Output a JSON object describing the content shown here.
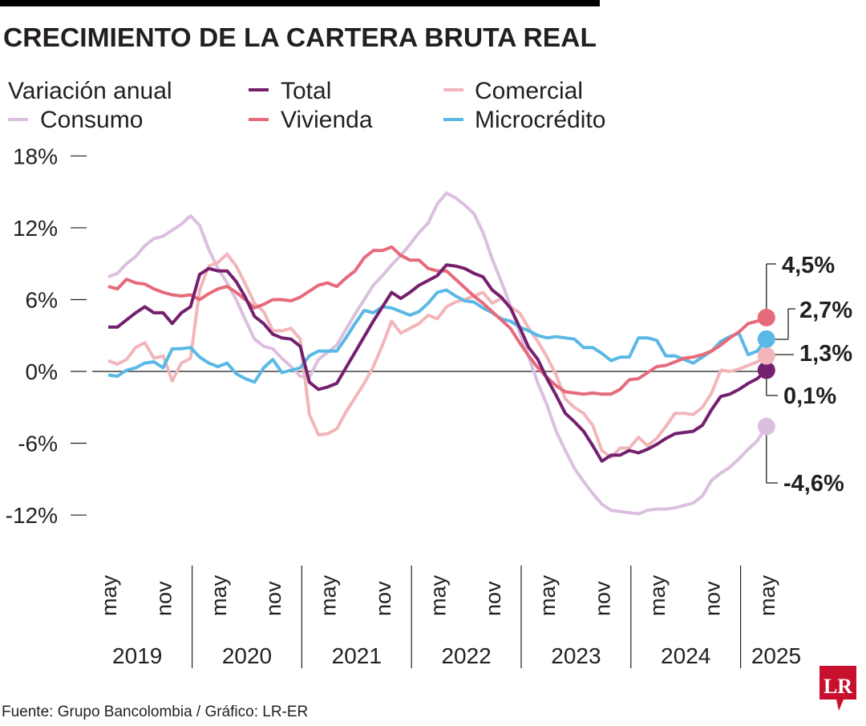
{
  "title": "CRECIMIENTO DE LA CARTERA BRUTA REAL",
  "legend": {
    "caption": "Variación anual",
    "items": [
      {
        "key": "total",
        "label": "Total",
        "color": "#74206f"
      },
      {
        "key": "comercial",
        "label": "Comercial",
        "color": "#f2b6ba"
      },
      {
        "key": "consumo",
        "label": "Consumo",
        "color": "#dbbfdf"
      },
      {
        "key": "vivienda",
        "label": "Vivienda",
        "color": "#e76a7b"
      },
      {
        "key": "microcredito",
        "label": "Microcrédito",
        "color": "#5ab8e6"
      }
    ]
  },
  "source": "Fuente: Grupo Bancolombia / Gráfico: LR-ER",
  "logo_text": "LR",
  "chart_data": {
    "type": "line",
    "title": "CRECIMIENTO DE LA CARTERA BRUTA REAL",
    "ylabel": "Variación anual",
    "ylim": [
      -12,
      18
    ],
    "yticks": [
      "18%",
      "12%",
      "6%",
      "0%",
      "-6%",
      "-12%"
    ],
    "ytick_values": [
      18,
      12,
      6,
      0,
      -6,
      -12
    ],
    "x_start": "may 2019",
    "x_end": "may 2025",
    "x_frequency": "monthly",
    "xtick_labels": [
      "may",
      "nov",
      "may",
      "nov",
      "may",
      "nov",
      "may",
      "nov",
      "may",
      "nov",
      "may",
      "nov",
      "may"
    ],
    "years": [
      "2019",
      "2020",
      "2021",
      "2022",
      "2023",
      "2024",
      "2025"
    ],
    "zero_line": true,
    "grid": false,
    "legend_position": "top",
    "series": [
      {
        "key": "consumo",
        "name": "Consumo",
        "color": "#dbbfdf",
        "end_label": "-4,6%",
        "values": [
          7.9,
          8.2,
          9.0,
          9.6,
          10.5,
          11.1,
          11.3,
          11.8,
          12.3,
          13.0,
          12.2,
          10.2,
          8.6,
          7.4,
          6.0,
          4.3,
          2.7,
          2.1,
          1.9,
          1.1,
          0.4,
          -0.4,
          -0.5,
          1.0,
          1.6,
          2.2,
          3.5,
          4.8,
          6.0,
          7.2,
          8.0,
          8.9,
          9.7,
          10.6,
          11.6,
          12.4,
          14.0,
          14.9,
          14.5,
          13.9,
          13.2,
          11.6,
          9.4,
          7.5,
          5.5,
          3.3,
          1.2,
          -1.0,
          -2.8,
          -5.0,
          -6.6,
          -8.1,
          -9.2,
          -10.2,
          -11.1,
          -11.6,
          -11.7,
          -11.8,
          -11.9,
          -11.6,
          -11.5,
          -11.5,
          -11.4,
          -11.2,
          -11.0,
          -10.4,
          -9.1,
          -8.5,
          -8.0,
          -7.3,
          -6.5,
          -5.8,
          -4.6
        ]
      },
      {
        "key": "comercial",
        "name": "Comercial",
        "color": "#f2b6ba",
        "end_label": "1,3%",
        "values": [
          0.9,
          0.6,
          1.0,
          2.0,
          2.4,
          1.1,
          1.3,
          -0.8,
          0.7,
          1.1,
          6.8,
          8.8,
          9.1,
          9.8,
          8.8,
          7.3,
          5.7,
          5.0,
          3.4,
          3.4,
          3.6,
          2.7,
          -3.6,
          -5.3,
          -5.2,
          -4.8,
          -3.4,
          -2.2,
          -1.0,
          0.4,
          2.2,
          4.2,
          3.2,
          3.6,
          4.0,
          4.7,
          4.4,
          5.4,
          5.8,
          6.0,
          6.3,
          6.6,
          5.7,
          6.1,
          5.4,
          4.9,
          3.6,
          2.5,
          1.2,
          -0.3,
          -2.3,
          -3.0,
          -3.5,
          -4.5,
          -6.6,
          -7.2,
          -6.4,
          -6.4,
          -5.5,
          -6.2,
          -5.6,
          -4.6,
          -3.5,
          -3.5,
          -3.6,
          -3.0,
          -1.8,
          0.1,
          0.0,
          0.2,
          0.5,
          0.8,
          1.3
        ]
      },
      {
        "key": "microcredito",
        "name": "Microcrédito",
        "color": "#5ab8e6",
        "end_label": "2,7%",
        "values": [
          -0.3,
          -0.4,
          0.1,
          0.3,
          0.7,
          0.8,
          0.3,
          1.9,
          1.9,
          2.0,
          1.2,
          0.7,
          0.4,
          0.7,
          -0.2,
          -0.6,
          -0.9,
          0.3,
          1.0,
          -0.1,
          0.1,
          0.3,
          1.3,
          1.7,
          1.7,
          1.7,
          2.8,
          4.0,
          5.1,
          4.9,
          5.4,
          5.3,
          5.0,
          4.7,
          5.0,
          5.7,
          6.6,
          6.8,
          6.3,
          5.9,
          5.8,
          5.3,
          4.9,
          4.4,
          4.2,
          3.7,
          3.4,
          3.0,
          2.8,
          2.9,
          2.8,
          2.7,
          2.0,
          2.0,
          1.5,
          0.9,
          1.2,
          1.2,
          2.8,
          2.8,
          2.6,
          1.3,
          1.3,
          1.0,
          0.7,
          1.2,
          1.7,
          2.5,
          2.9,
          3.2,
          1.4,
          1.7,
          2.7
        ]
      },
      {
        "key": "vivienda",
        "name": "Vivienda",
        "color": "#e76a7b",
        "end_label": "4,5%",
        "values": [
          7.1,
          6.9,
          7.7,
          7.4,
          7.3,
          6.9,
          6.6,
          6.4,
          6.3,
          6.4,
          6.0,
          6.5,
          6.9,
          7.1,
          6.6,
          6.0,
          5.3,
          5.6,
          6.0,
          6.0,
          5.9,
          6.2,
          6.7,
          7.2,
          7.4,
          7.1,
          7.8,
          8.4,
          9.5,
          10.1,
          10.1,
          10.4,
          9.7,
          9.3,
          9.3,
          8.6,
          8.4,
          8.4,
          7.7,
          7.0,
          6.3,
          5.7,
          5.0,
          4.3,
          3.6,
          2.4,
          1.3,
          0.3,
          -0.5,
          -1.2,
          -1.7,
          -1.8,
          -1.9,
          -1.8,
          -1.9,
          -1.9,
          -1.5,
          -0.7,
          -0.6,
          -0.1,
          0.4,
          0.5,
          0.8,
          1.1,
          1.2,
          1.4,
          1.7,
          2.2,
          2.8,
          3.3,
          4.0,
          4.2,
          4.5
        ]
      },
      {
        "key": "total",
        "name": "Total",
        "color": "#74206f",
        "end_label": "0,1%",
        "values": [
          3.7,
          3.7,
          4.3,
          4.9,
          5.4,
          4.9,
          4.9,
          4.0,
          4.9,
          5.4,
          8.1,
          8.6,
          8.4,
          8.4,
          7.5,
          6.2,
          4.6,
          4.0,
          3.1,
          2.8,
          2.7,
          2.1,
          -0.9,
          -1.5,
          -1.3,
          -1.0,
          0.3,
          1.6,
          2.9,
          4.2,
          5.4,
          6.6,
          6.1,
          6.6,
          7.2,
          7.6,
          8.0,
          8.9,
          8.8,
          8.6,
          8.2,
          7.9,
          6.8,
          6.2,
          5.3,
          3.7,
          2.0,
          1.0,
          -0.6,
          -2.0,
          -3.5,
          -4.2,
          -5.0,
          -6.2,
          -7.5,
          -7.0,
          -7.0,
          -6.6,
          -6.8,
          -6.5,
          -6.1,
          -5.6,
          -5.2,
          -5.1,
          -5.0,
          -4.5,
          -3.2,
          -2.1,
          -1.9,
          -1.5,
          -1.0,
          -0.6,
          0.1
        ]
      }
    ]
  }
}
